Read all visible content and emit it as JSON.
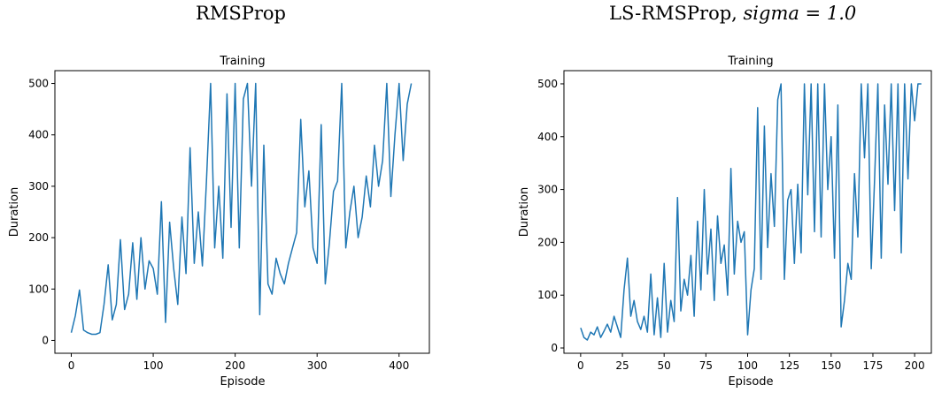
{
  "figure": {
    "captions": [
      {
        "text": "RMSProp",
        "math": ""
      },
      {
        "text": "LS-RMSProp, ",
        "math": "sigma = 1.0"
      }
    ]
  },
  "chart_data": [
    {
      "type": "line",
      "title": "Training",
      "xlabel": "Episode",
      "ylabel": "Duration",
      "xlim": [
        -20,
        437
      ],
      "ylim": [
        -25,
        525
      ],
      "xticks": [
        0,
        100,
        200,
        300,
        400
      ],
      "yticks": [
        0,
        100,
        200,
        300,
        400,
        500
      ],
      "grid": false,
      "series": [
        {
          "name": "",
          "color": "#1f77b4",
          "x": [
            0,
            5,
            10,
            15,
            20,
            25,
            30,
            35,
            40,
            45,
            50,
            55,
            60,
            65,
            70,
            75,
            80,
            85,
            90,
            95,
            100,
            105,
            110,
            115,
            120,
            125,
            130,
            135,
            140,
            145,
            150,
            155,
            160,
            165,
            170,
            175,
            180,
            185,
            190,
            195,
            200,
            205,
            210,
            215,
            220,
            225,
            230,
            235,
            240,
            245,
            250,
            255,
            260,
            265,
            270,
            275,
            280,
            285,
            290,
            295,
            300,
            305,
            310,
            315,
            320,
            325,
            330,
            335,
            340,
            345,
            350,
            355,
            360,
            365,
            370,
            375,
            380,
            385,
            390,
            395,
            400,
            405,
            410,
            415
          ],
          "y": [
            15,
            48,
            98,
            20,
            15,
            12,
            12,
            15,
            70,
            147,
            40,
            70,
            196,
            60,
            90,
            190,
            80,
            200,
            100,
            155,
            140,
            90,
            270,
            35,
            230,
            140,
            70,
            240,
            130,
            375,
            150,
            250,
            145,
            310,
            500,
            180,
            300,
            160,
            480,
            220,
            500,
            180,
            470,
            500,
            300,
            500,
            50,
            380,
            110,
            90,
            160,
            130,
            110,
            150,
            180,
            210,
            430,
            260,
            330,
            180,
            150,
            420,
            110,
            190,
            290,
            310,
            500,
            180,
            250,
            300,
            200,
            240,
            320,
            260,
            380,
            300,
            350,
            500,
            280,
            400,
            500,
            350,
            460,
            500
          ]
        }
      ]
    },
    {
      "type": "line",
      "title": "Training",
      "xlabel": "Episode",
      "ylabel": "Duration",
      "xlim": [
        -10,
        210
      ],
      "ylim": [
        -10,
        525
      ],
      "xticks": [
        0,
        25,
        50,
        75,
        100,
        125,
        150,
        175,
        200
      ],
      "yticks": [
        0,
        100,
        200,
        300,
        400,
        500
      ],
      "grid": false,
      "series": [
        {
          "name": "",
          "color": "#1f77b4",
          "x": [
            0,
            2,
            4,
            6,
            8,
            10,
            12,
            14,
            16,
            18,
            20,
            22,
            24,
            26,
            28,
            30,
            32,
            34,
            36,
            38,
            40,
            42,
            44,
            46,
            48,
            50,
            52,
            54,
            56,
            58,
            60,
            62,
            64,
            66,
            68,
            70,
            72,
            74,
            76,
            78,
            80,
            82,
            84,
            86,
            88,
            90,
            92,
            94,
            96,
            98,
            100,
            102,
            104,
            106,
            108,
            110,
            112,
            114,
            116,
            118,
            120,
            122,
            124,
            126,
            128,
            130,
            132,
            134,
            136,
            138,
            140,
            142,
            144,
            146,
            148,
            150,
            152,
            154,
            156,
            158,
            160,
            162,
            164,
            166,
            168,
            170,
            172,
            174,
            176,
            178,
            180,
            182,
            184,
            186,
            188,
            190,
            192,
            194,
            196,
            198,
            200,
            202,
            204
          ],
          "y": [
            38,
            20,
            15,
            30,
            25,
            40,
            20,
            32,
            45,
            30,
            60,
            40,
            20,
            110,
            170,
            60,
            90,
            50,
            35,
            60,
            30,
            140,
            25,
            95,
            20,
            160,
            30,
            90,
            50,
            285,
            70,
            130,
            100,
            175,
            60,
            240,
            110,
            300,
            140,
            225,
            90,
            250,
            160,
            195,
            100,
            340,
            140,
            240,
            200,
            220,
            25,
            110,
            150,
            455,
            130,
            420,
            190,
            330,
            230,
            470,
            500,
            130,
            280,
            300,
            160,
            310,
            180,
            500,
            290,
            500,
            220,
            500,
            210,
            500,
            300,
            400,
            170,
            460,
            40,
            90,
            160,
            130,
            330,
            210,
            500,
            360,
            500,
            150,
            320,
            500,
            170,
            460,
            310,
            500,
            260,
            500,
            180,
            500,
            320,
            500,
            430,
            500,
            500
          ]
        }
      ]
    }
  ]
}
